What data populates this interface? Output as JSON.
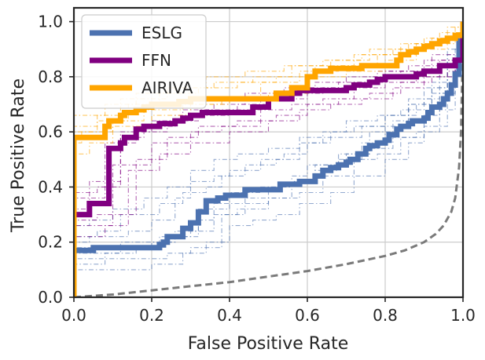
{
  "chart_data": {
    "type": "line",
    "title": "",
    "xlabel": "False Positive Rate",
    "ylabel": "True Positive Rate",
    "xlim": [
      0.0,
      1.0
    ],
    "ylim": [
      0.0,
      1.05
    ],
    "xticks": [
      "0.0",
      "0.2",
      "0.4",
      "0.6",
      "0.8",
      "1.0"
    ],
    "yticks": [
      "0.0",
      "0.2",
      "0.4",
      "0.6",
      "0.8",
      "1.0"
    ],
    "grid": true,
    "legend_placement": "upper-left",
    "series": [
      {
        "name": "ESLG",
        "color": "#4c72b0",
        "mean_roc": {
          "x": [
            0.0,
            0.0,
            0.04,
            0.05,
            0.1,
            0.11,
            0.16,
            0.17,
            0.22,
            0.23,
            0.24,
            0.28,
            0.3,
            0.32,
            0.34,
            0.36,
            0.37,
            0.39,
            0.42,
            0.44,
            0.48,
            0.49,
            0.53,
            0.58,
            0.6,
            0.62,
            0.64,
            0.66,
            0.68,
            0.7,
            0.71,
            0.73,
            0.75,
            0.76,
            0.78,
            0.8,
            0.81,
            0.83,
            0.84,
            0.86,
            0.87,
            0.88,
            0.9,
            0.91,
            0.92,
            0.94,
            0.95,
            0.96,
            0.97,
            0.98,
            0.99,
            1.0
          ],
          "y": [
            0.0,
            0.17,
            0.17,
            0.18,
            0.18,
            0.18,
            0.18,
            0.18,
            0.19,
            0.2,
            0.22,
            0.25,
            0.27,
            0.31,
            0.35,
            0.35,
            0.36,
            0.37,
            0.37,
            0.39,
            0.39,
            0.39,
            0.41,
            0.42,
            0.42,
            0.44,
            0.46,
            0.47,
            0.48,
            0.49,
            0.5,
            0.52,
            0.54,
            0.55,
            0.56,
            0.57,
            0.59,
            0.61,
            0.62,
            0.63,
            0.64,
            0.64,
            0.65,
            0.67,
            0.69,
            0.7,
            0.72,
            0.74,
            0.77,
            0.81,
            0.93,
            1.0
          ]
        },
        "fold_curves": [
          {
            "x": [
              0.0,
              0.0,
              0.06,
              0.12,
              0.18,
              0.26,
              0.32,
              0.36,
              0.44,
              0.5,
              0.56,
              0.62,
              0.7,
              0.76,
              0.82,
              0.86,
              0.92,
              0.96,
              1.0
            ],
            "y": [
              0.0,
              0.16,
              0.16,
              0.2,
              0.2,
              0.22,
              0.28,
              0.34,
              0.36,
              0.4,
              0.42,
              0.48,
              0.52,
              0.6,
              0.64,
              0.72,
              0.76,
              0.88,
              1.0
            ]
          },
          {
            "x": [
              0.0,
              0.0,
              0.08,
              0.16,
              0.24,
              0.3,
              0.38,
              0.42,
              0.5,
              0.58,
              0.64,
              0.72,
              0.78,
              0.84,
              0.9,
              0.94,
              0.98,
              1.0
            ],
            "y": [
              0.0,
              0.12,
              0.14,
              0.14,
              0.16,
              0.18,
              0.3,
              0.32,
              0.36,
              0.38,
              0.44,
              0.5,
              0.52,
              0.58,
              0.66,
              0.74,
              0.86,
              1.0
            ]
          },
          {
            "x": [
              0.0,
              0.0,
              0.04,
              0.14,
              0.2,
              0.26,
              0.3,
              0.36,
              0.4,
              0.48,
              0.54,
              0.6,
              0.66,
              0.74,
              0.8,
              0.88,
              0.92,
              0.98,
              1.0
            ],
            "y": [
              0.0,
              0.2,
              0.22,
              0.24,
              0.28,
              0.36,
              0.42,
              0.44,
              0.46,
              0.5,
              0.52,
              0.56,
              0.58,
              0.62,
              0.66,
              0.7,
              0.78,
              0.9,
              1.0
            ]
          },
          {
            "x": [
              0.0,
              0.0,
              0.1,
              0.2,
              0.28,
              0.34,
              0.4,
              0.46,
              0.52,
              0.58,
              0.66,
              0.72,
              0.8,
              0.86,
              0.9,
              0.96,
              1.0
            ],
            "y": [
              0.0,
              0.1,
              0.1,
              0.12,
              0.16,
              0.2,
              0.26,
              0.28,
              0.3,
              0.34,
              0.38,
              0.44,
              0.5,
              0.56,
              0.62,
              0.8,
              1.0
            ]
          },
          {
            "x": [
              0.0,
              0.0,
              0.06,
              0.12,
              0.22,
              0.28,
              0.34,
              0.38,
              0.44,
              0.52,
              0.58,
              0.64,
              0.7,
              0.78,
              0.84,
              0.9,
              0.94,
              1.0
            ],
            "y": [
              0.0,
              0.22,
              0.24,
              0.3,
              0.34,
              0.38,
              0.4,
              0.44,
              0.48,
              0.5,
              0.56,
              0.6,
              0.64,
              0.66,
              0.68,
              0.72,
              0.84,
              1.0
            ]
          },
          {
            "x": [
              0.0,
              0.0,
              0.08,
              0.16,
              0.22,
              0.3,
              0.36,
              0.44,
              0.5,
              0.56,
              0.62,
              0.68,
              0.76,
              0.82,
              0.88,
              0.94,
              0.98,
              1.0
            ],
            "y": [
              0.0,
              0.14,
              0.16,
              0.18,
              0.22,
              0.24,
              0.3,
              0.34,
              0.36,
              0.42,
              0.46,
              0.52,
              0.54,
              0.58,
              0.6,
              0.68,
              0.82,
              1.0
            ]
          },
          {
            "x": [
              0.0,
              0.0,
              0.12,
              0.2,
              0.26,
              0.32,
              0.4,
              0.48,
              0.56,
              0.6,
              0.68,
              0.74,
              0.8,
              0.86,
              0.92,
              0.96,
              1.0
            ],
            "y": [
              0.0,
              0.18,
              0.18,
              0.2,
              0.24,
              0.32,
              0.38,
              0.4,
              0.44,
              0.48,
              0.5,
              0.56,
              0.62,
              0.7,
              0.74,
              0.86,
              1.0
            ]
          },
          {
            "x": [
              0.0,
              0.0,
              0.04,
              0.1,
              0.18,
              0.24,
              0.3,
              0.36,
              0.42,
              0.5,
              0.58,
              0.66,
              0.72,
              0.8,
              0.86,
              0.9,
              0.96,
              1.0
            ],
            "y": [
              0.0,
              0.26,
              0.28,
              0.32,
              0.36,
              0.4,
              0.46,
              0.5,
              0.52,
              0.54,
              0.58,
              0.6,
              0.62,
              0.66,
              0.7,
              0.76,
              0.9,
              1.0
            ]
          }
        ]
      },
      {
        "name": "FFN",
        "color": "#800080",
        "mean_roc": {
          "x": [
            0.0,
            0.0,
            0.04,
            0.08,
            0.09,
            0.12,
            0.13,
            0.15,
            0.16,
            0.18,
            0.22,
            0.26,
            0.28,
            0.3,
            0.33,
            0.36,
            0.4,
            0.44,
            0.46,
            0.5,
            0.55,
            0.56,
            0.58,
            0.6,
            0.63,
            0.66,
            0.7,
            0.72,
            0.76,
            0.78,
            0.8,
            0.84,
            0.88,
            0.9,
            0.94,
            0.97,
            0.98,
            0.99,
            1.0
          ],
          "y": [
            0.0,
            0.3,
            0.34,
            0.34,
            0.54,
            0.56,
            0.58,
            0.58,
            0.61,
            0.62,
            0.63,
            0.64,
            0.65,
            0.66,
            0.67,
            0.67,
            0.67,
            0.67,
            0.69,
            0.72,
            0.72,
            0.74,
            0.75,
            0.75,
            0.75,
            0.75,
            0.76,
            0.77,
            0.78,
            0.79,
            0.8,
            0.8,
            0.81,
            0.82,
            0.84,
            0.84,
            0.86,
            0.86,
            1.0
          ]
        },
        "fold_curves": [
          {
            "x": [
              0.0,
              0.0,
              0.06,
              0.1,
              0.2,
              0.3,
              0.38,
              0.48,
              0.56,
              0.64,
              0.72,
              0.8,
              0.88,
              0.94,
              1.0
            ],
            "y": [
              0.0,
              0.28,
              0.3,
              0.48,
              0.56,
              0.6,
              0.62,
              0.68,
              0.7,
              0.72,
              0.76,
              0.78,
              0.8,
              0.84,
              1.0
            ]
          },
          {
            "x": [
              0.0,
              0.0,
              0.04,
              0.12,
              0.18,
              0.26,
              0.34,
              0.42,
              0.5,
              0.6,
              0.68,
              0.76,
              0.84,
              0.92,
              1.0
            ],
            "y": [
              0.0,
              0.36,
              0.42,
              0.58,
              0.62,
              0.66,
              0.68,
              0.7,
              0.72,
              0.76,
              0.78,
              0.8,
              0.82,
              0.88,
              1.0
            ]
          },
          {
            "x": [
              0.0,
              0.0,
              0.08,
              0.14,
              0.22,
              0.3,
              0.4,
              0.5,
              0.58,
              0.66,
              0.74,
              0.82,
              0.9,
              0.96,
              1.0
            ],
            "y": [
              0.0,
              0.22,
              0.26,
              0.46,
              0.52,
              0.56,
              0.6,
              0.64,
              0.68,
              0.7,
              0.72,
              0.76,
              0.8,
              0.82,
              1.0
            ]
          },
          {
            "x": [
              0.0,
              0.0,
              0.06,
              0.12,
              0.2,
              0.28,
              0.36,
              0.44,
              0.54,
              0.62,
              0.7,
              0.78,
              0.86,
              0.94,
              1.0
            ],
            "y": [
              0.0,
              0.38,
              0.4,
              0.6,
              0.64,
              0.68,
              0.7,
              0.74,
              0.76,
              0.78,
              0.8,
              0.82,
              0.84,
              0.86,
              1.0
            ]
          },
          {
            "x": [
              0.0,
              0.0,
              0.1,
              0.16,
              0.24,
              0.32,
              0.42,
              0.52,
              0.6,
              0.68,
              0.76,
              0.84,
              0.92,
              0.98,
              1.0
            ],
            "y": [
              0.0,
              0.26,
              0.3,
              0.5,
              0.58,
              0.62,
              0.64,
              0.66,
              0.7,
              0.72,
              0.74,
              0.78,
              0.8,
              0.84,
              1.0
            ]
          },
          {
            "x": [
              0.0,
              0.0,
              0.04,
              0.08,
              0.16,
              0.24,
              0.32,
              0.4,
              0.48,
              0.56,
              0.64,
              0.72,
              0.8,
              0.9,
              1.0
            ],
            "y": [
              0.0,
              0.32,
              0.36,
              0.56,
              0.6,
              0.64,
              0.66,
              0.68,
              0.72,
              0.74,
              0.76,
              0.78,
              0.82,
              0.86,
              1.0
            ]
          }
        ]
      },
      {
        "name": "AIRIVA",
        "color": "#ffa500",
        "mean_roc": {
          "x": [
            0.0,
            0.0,
            0.04,
            0.08,
            0.09,
            0.12,
            0.13,
            0.16,
            0.18,
            0.2,
            0.24,
            0.27,
            0.3,
            0.36,
            0.42,
            0.48,
            0.52,
            0.56,
            0.6,
            0.62,
            0.66,
            0.7,
            0.74,
            0.78,
            0.82,
            0.83,
            0.84,
            0.86,
            0.88,
            0.9,
            0.92,
            0.94,
            0.96,
            0.98,
            1.0
          ],
          "y": [
            0.0,
            0.58,
            0.58,
            0.62,
            0.64,
            0.66,
            0.67,
            0.68,
            0.69,
            0.7,
            0.7,
            0.71,
            0.72,
            0.72,
            0.72,
            0.72,
            0.74,
            0.76,
            0.8,
            0.82,
            0.83,
            0.83,
            0.84,
            0.84,
            0.84,
            0.86,
            0.88,
            0.89,
            0.9,
            0.91,
            0.92,
            0.93,
            0.94,
            0.95,
            1.0
          ]
        },
        "fold_curves": [
          {
            "x": [
              0.0,
              0.0,
              0.06,
              0.14,
              0.22,
              0.32,
              0.42,
              0.52,
              0.62,
              0.72,
              0.82,
              0.9,
              0.96,
              1.0
            ],
            "y": [
              0.0,
              0.6,
              0.64,
              0.7,
              0.74,
              0.76,
              0.78,
              0.8,
              0.84,
              0.88,
              0.9,
              0.94,
              0.98,
              1.0
            ]
          },
          {
            "x": [
              0.0,
              0.0,
              0.04,
              0.1,
              0.2,
              0.3,
              0.4,
              0.5,
              0.6,
              0.7,
              0.8,
              0.88,
              0.96,
              1.0
            ],
            "y": [
              0.0,
              0.52,
              0.56,
              0.62,
              0.66,
              0.7,
              0.72,
              0.74,
              0.8,
              0.82,
              0.86,
              0.9,
              0.94,
              1.0
            ]
          },
          {
            "x": [
              0.0,
              0.0,
              0.08,
              0.16,
              0.26,
              0.36,
              0.46,
              0.56,
              0.66,
              0.76,
              0.86,
              0.94,
              1.0
            ],
            "y": [
              0.0,
              0.66,
              0.7,
              0.74,
              0.76,
              0.78,
              0.8,
              0.84,
              0.86,
              0.9,
              0.92,
              0.96,
              1.0
            ]
          },
          {
            "x": [
              0.0,
              0.0,
              0.02,
              0.1,
              0.18,
              0.28,
              0.38,
              0.48,
              0.58,
              0.68,
              0.78,
              0.88,
              0.98,
              1.0
            ],
            "y": [
              0.0,
              0.56,
              0.6,
              0.64,
              0.68,
              0.7,
              0.72,
              0.78,
              0.82,
              0.84,
              0.88,
              0.92,
              0.96,
              1.0
            ]
          },
          {
            "x": [
              0.0,
              0.0,
              0.06,
              0.12,
              0.24,
              0.34,
              0.44,
              0.54,
              0.64,
              0.74,
              0.84,
              0.92,
              0.98,
              1.0
            ],
            "y": [
              0.0,
              0.62,
              0.66,
              0.72,
              0.76,
              0.8,
              0.82,
              0.84,
              0.86,
              0.88,
              0.92,
              0.94,
              0.98,
              1.0
            ]
          }
        ]
      }
    ],
    "chance_curve": {
      "style": "dashed",
      "color": "#7a7a7a",
      "x": [
        0.0,
        0.1,
        0.2,
        0.3,
        0.4,
        0.5,
        0.6,
        0.7,
        0.8,
        0.85,
        0.9,
        0.93,
        0.95,
        0.97,
        0.98,
        0.99,
        0.995,
        1.0
      ],
      "y": [
        0.0,
        0.01,
        0.025,
        0.04,
        0.055,
        0.075,
        0.095,
        0.12,
        0.15,
        0.17,
        0.2,
        0.23,
        0.26,
        0.31,
        0.36,
        0.47,
        0.6,
        0.93
      ]
    }
  }
}
